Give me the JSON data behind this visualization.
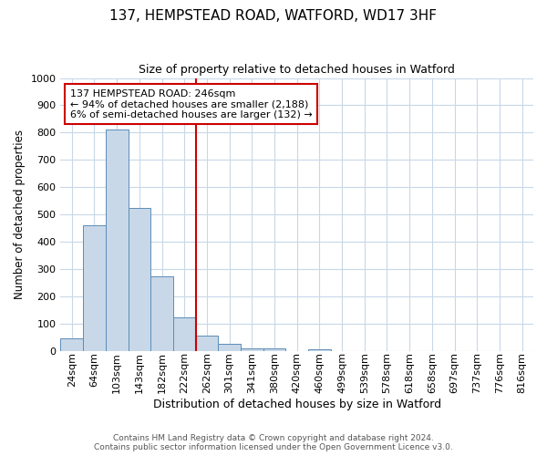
{
  "title1": "137, HEMPSTEAD ROAD, WATFORD, WD17 3HF",
  "title2": "Size of property relative to detached houses in Watford",
  "xlabel": "Distribution of detached houses by size in Watford",
  "ylabel": "Number of detached properties",
  "footer1": "Contains HM Land Registry data © Crown copyright and database right 2024.",
  "footer2": "Contains public sector information licensed under the Open Government Licence v3.0.",
  "annotation_line1": "137 HEMPSTEAD ROAD: 246sqm",
  "annotation_line2": "← 94% of detached houses are smaller (2,188)",
  "annotation_line3": "6% of semi-detached houses are larger (132) →",
  "bar_labels": [
    "24sqm",
    "64sqm",
    "103sqm",
    "143sqm",
    "182sqm",
    "222sqm",
    "262sqm",
    "301sqm",
    "341sqm",
    "380sqm",
    "420sqm",
    "460sqm",
    "499sqm",
    "539sqm",
    "578sqm",
    "618sqm",
    "658sqm",
    "697sqm",
    "737sqm",
    "776sqm",
    "816sqm"
  ],
  "bar_values": [
    45,
    460,
    810,
    525,
    275,
    125,
    55,
    25,
    10,
    10,
    0,
    8,
    0,
    0,
    0,
    0,
    0,
    0,
    0,
    0,
    0
  ],
  "bar_color": "#c8d8e8",
  "bar_edge_color": "#5b8db8",
  "red_line_x": 5.5,
  "red_line_color": "#cc0000",
  "annotation_box_color": "#ffffff",
  "annotation_box_edge": "#cc0000",
  "ylim": [
    0,
    1000
  ],
  "yticks": [
    0,
    100,
    200,
    300,
    400,
    500,
    600,
    700,
    800,
    900,
    1000
  ],
  "background_color": "#ffffff",
  "grid_color": "#c8d8e8",
  "title1_fontsize": 11,
  "title2_fontsize": 9,
  "xlabel_fontsize": 9,
  "ylabel_fontsize": 8.5,
  "tick_fontsize": 8,
  "footer_fontsize": 6.5,
  "annotation_fontsize": 8
}
